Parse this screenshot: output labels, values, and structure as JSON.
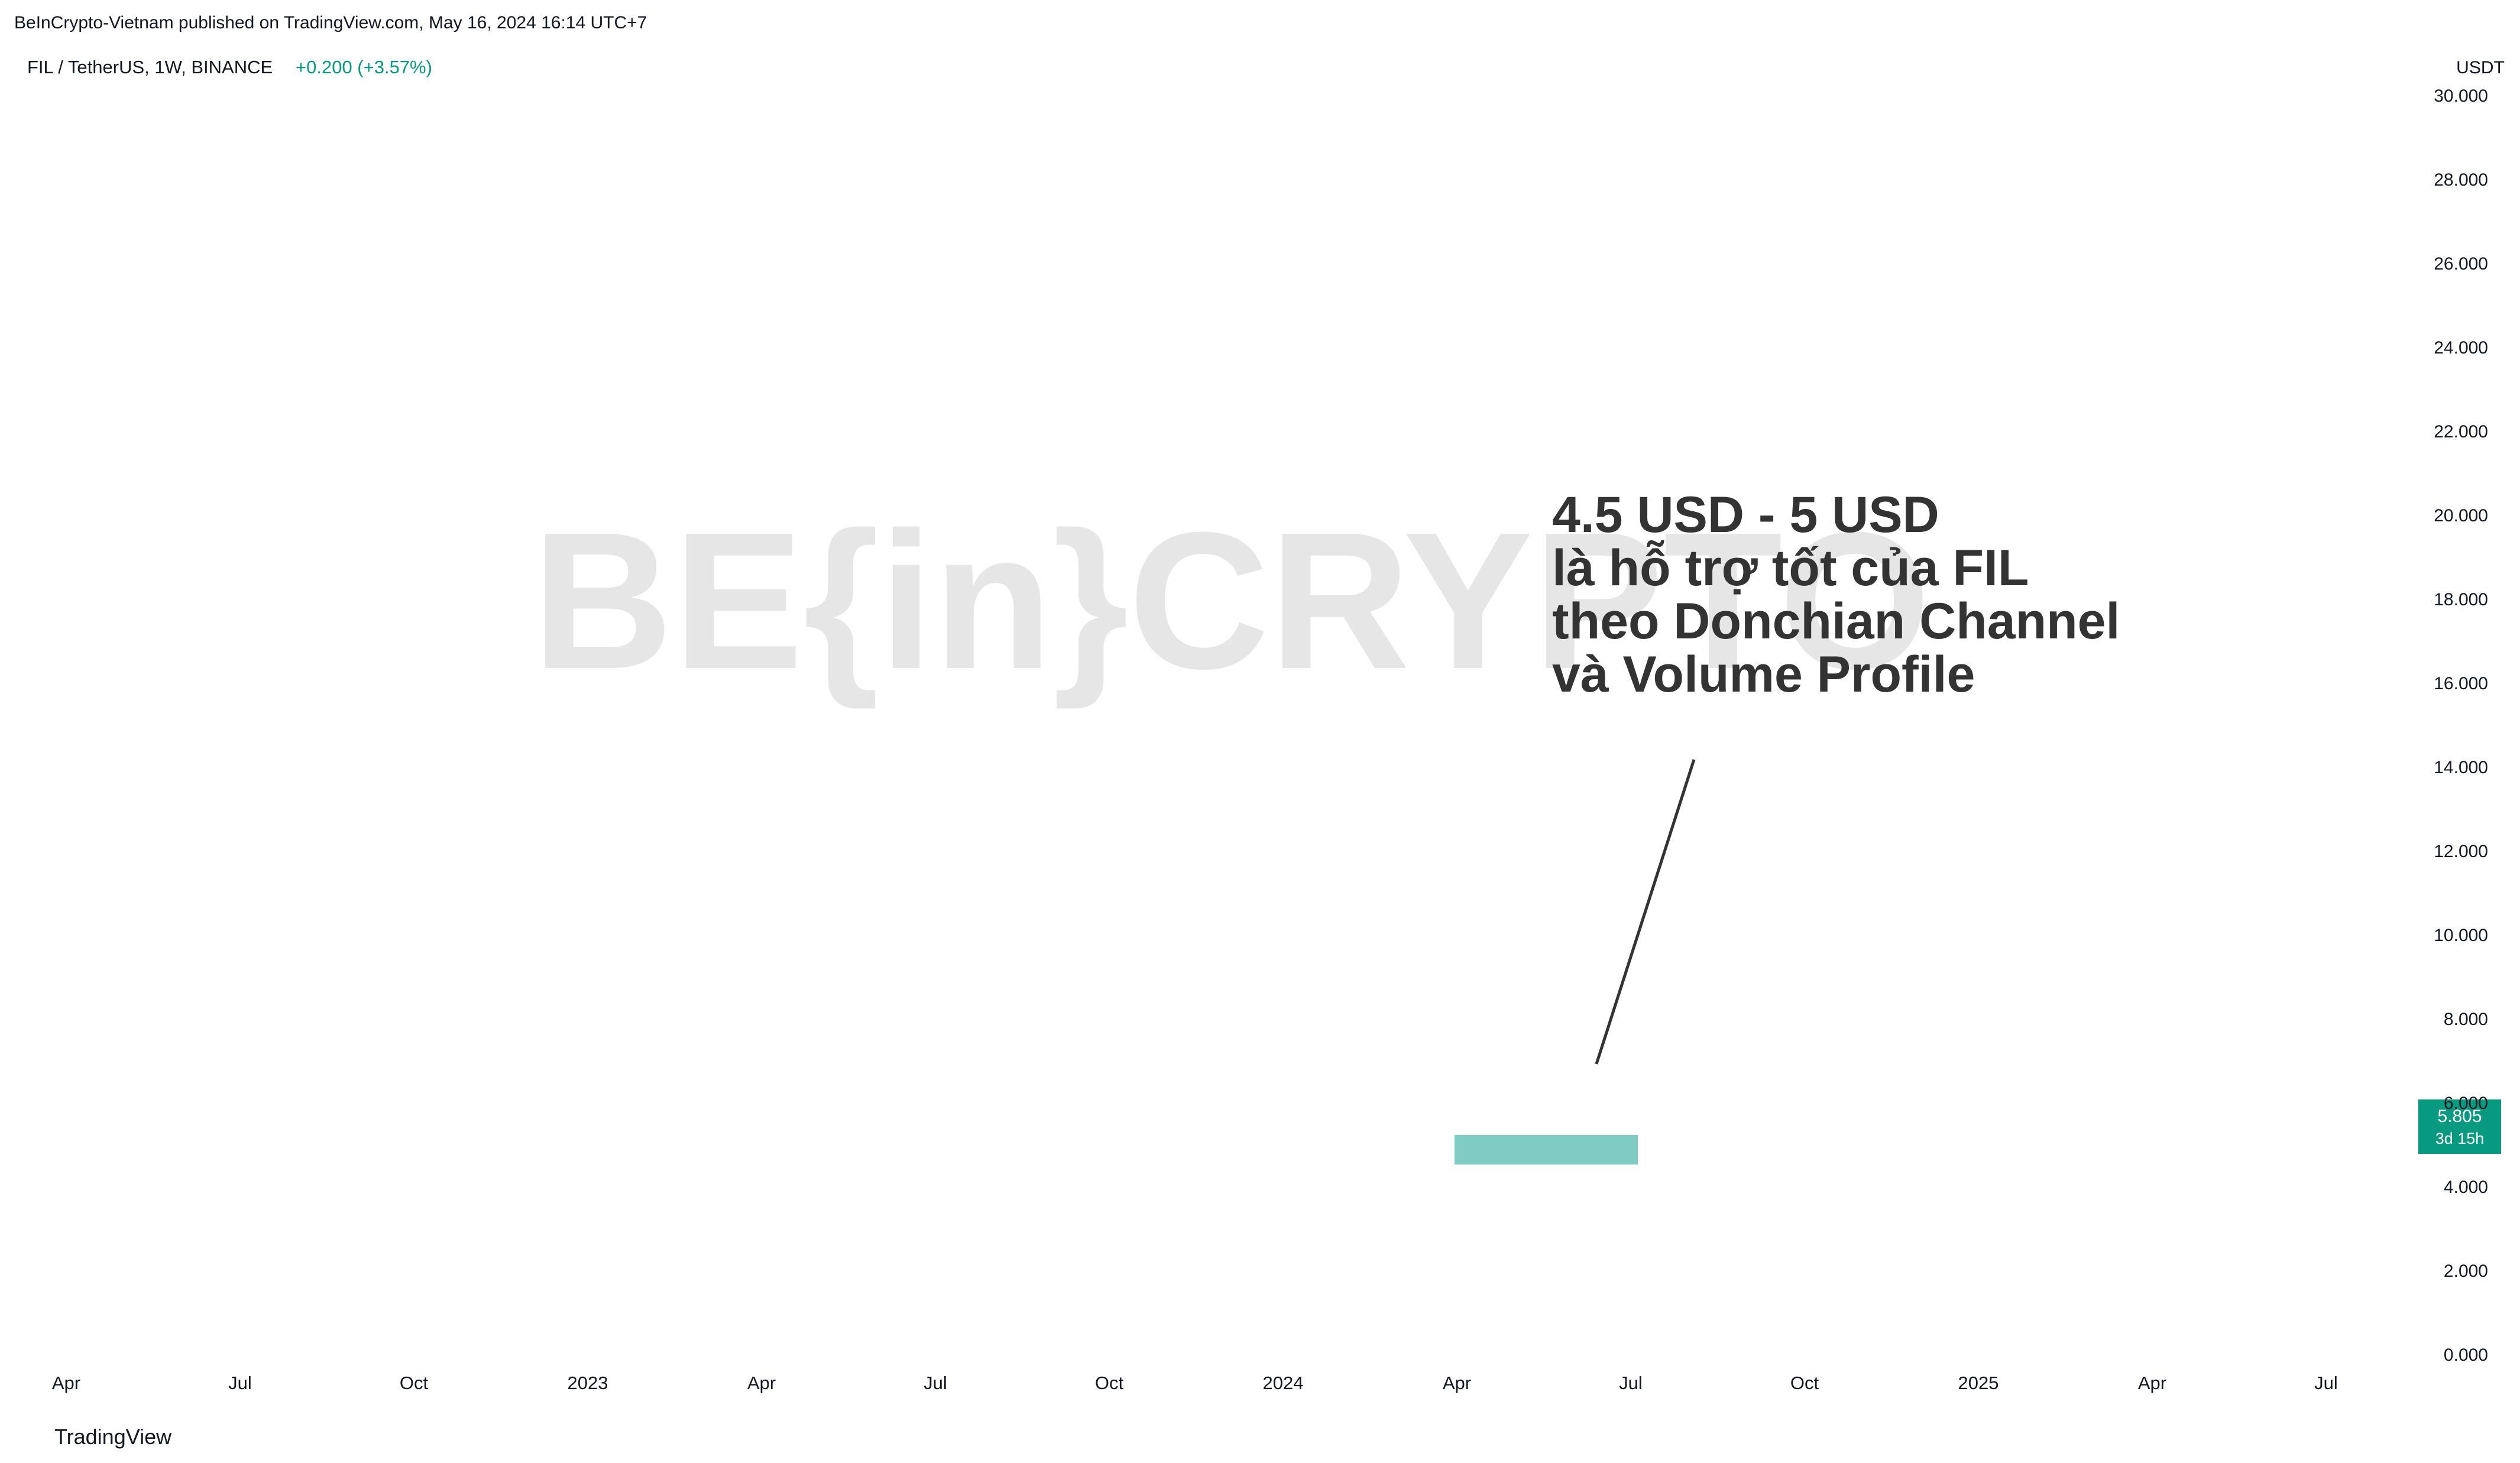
{
  "header": "BeInCrypto-Vietnam published on TradingView.com, May 16, 2024 16:14 UTC+7",
  "symbol": "FIL / TetherUS, 1W, BINANCE",
  "change": "+0.200 (+3.57%)",
  "currency": "USDT",
  "price": "5.805",
  "timer": "3d 15h",
  "note": [
    "4.5 USD - 5 USD",
    "là hỗ trợ tốt của FIL",
    "theo Donchian Channel",
    "và Volume Profile"
  ],
  "footer": "TradingView",
  "watermark": "BE{in}CRYPTO",
  "chart_data": {
    "type": "candlestick",
    "yticks": [
      "0.000",
      "2.000",
      "4.000",
      "6.000",
      "8.000",
      "10.000",
      "12.000",
      "14.000",
      "16.000",
      "18.000",
      "20.000",
      "22.000",
      "24.000",
      "26.000",
      "28.000",
      "30.000"
    ],
    "xticks": [
      "Apr",
      "Jul",
      "Oct",
      "2023",
      "Apr",
      "Jul",
      "Oct",
      "2024",
      "Apr",
      "Jul",
      "Oct",
      "2025",
      "Apr",
      "Jul"
    ]
  }
}
